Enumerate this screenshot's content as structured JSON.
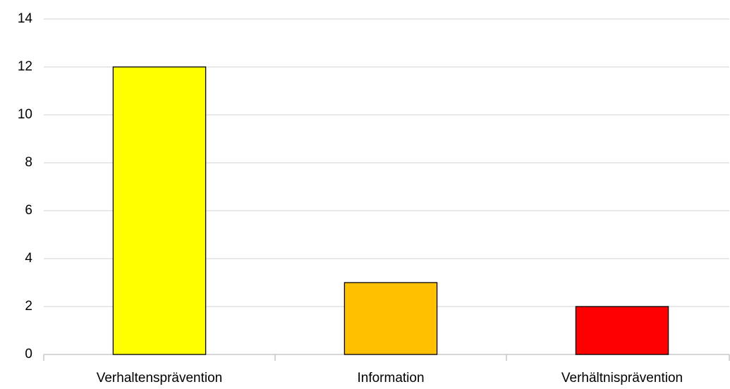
{
  "chart_data": {
    "type": "bar",
    "categories": [
      "Verhaltensprävention",
      "Information",
      "Verhältnisprävention"
    ],
    "values": [
      12,
      3,
      2
    ],
    "colors": [
      "#ffff00",
      "#ffc000",
      "#ff0000"
    ],
    "ylim": [
      0,
      14
    ],
    "yticks": [
      0,
      2,
      4,
      6,
      8,
      10,
      12,
      14
    ],
    "grid": true
  }
}
